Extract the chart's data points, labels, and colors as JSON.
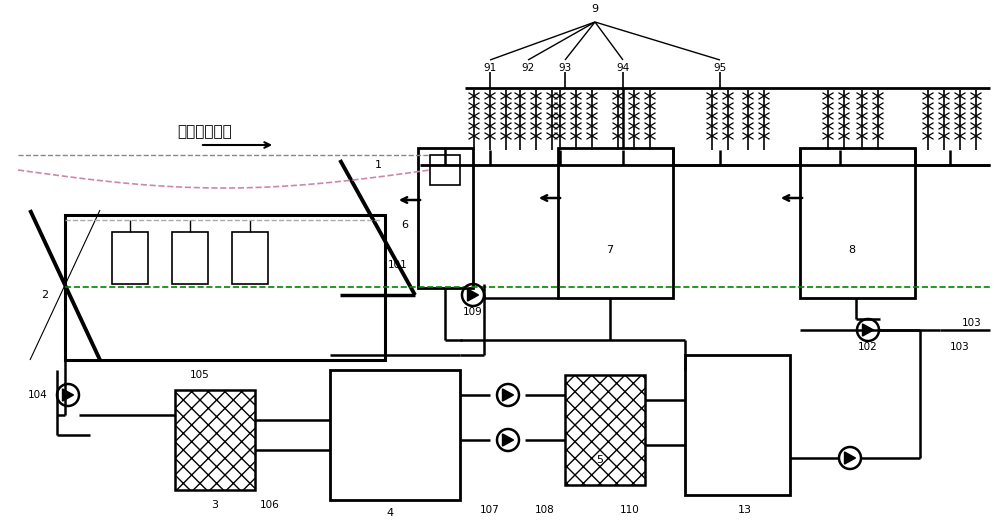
{
  "bg_color": "#ffffff",
  "lc": "#000000",
  "green_dash": "#008800",
  "pink_dash": "#cc88aa",
  "fig_w": 10.0,
  "fig_h": 5.28,
  "dpi": 100
}
